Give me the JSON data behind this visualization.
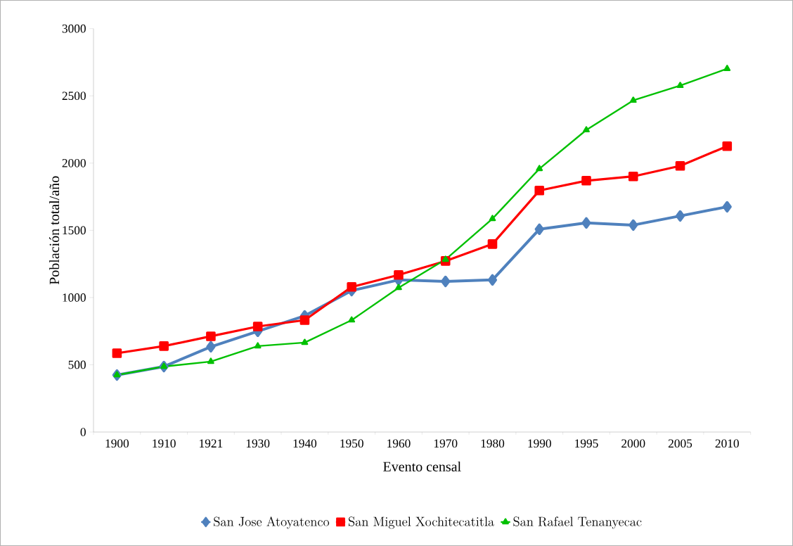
{
  "chart_data": {
    "type": "line",
    "xlabel": "Evento censal",
    "ylabel": "Población total/año",
    "categories": [
      "1900",
      "1910",
      "1921",
      "1930",
      "1940",
      "1950",
      "1960",
      "1970",
      "1980",
      "1990",
      "1995",
      "2000",
      "2005",
      "2010"
    ],
    "series": [
      {
        "name": "San Jose Atoyatenco",
        "color": "#4f81bd",
        "marker": "diamond",
        "values": [
          424,
          487,
          634,
          749,
          864,
          1052,
          1131,
          1120,
          1131,
          1508,
          1555,
          1539,
          1607,
          1675
        ]
      },
      {
        "name": "San Miguel Xochitecatitla",
        "color": "#ff0000",
        "marker": "square",
        "values": [
          586,
          639,
          712,
          785,
          832,
          1079,
          1168,
          1272,
          1398,
          1796,
          1869,
          1901,
          1979,
          2126
        ]
      },
      {
        "name": "San Rafael Tenanyecac",
        "color": "#00c000",
        "marker": "triangle",
        "values": [
          424,
          487,
          524,
          639,
          665,
          832,
          1073,
          1283,
          1586,
          1958,
          2246,
          2466,
          2576,
          2702
        ]
      }
    ],
    "ylim": [
      0,
      3000
    ],
    "yticks": [
      0,
      500,
      1000,
      1500,
      2000,
      2500,
      3000
    ],
    "grid": false,
    "legend": "bottom"
  }
}
